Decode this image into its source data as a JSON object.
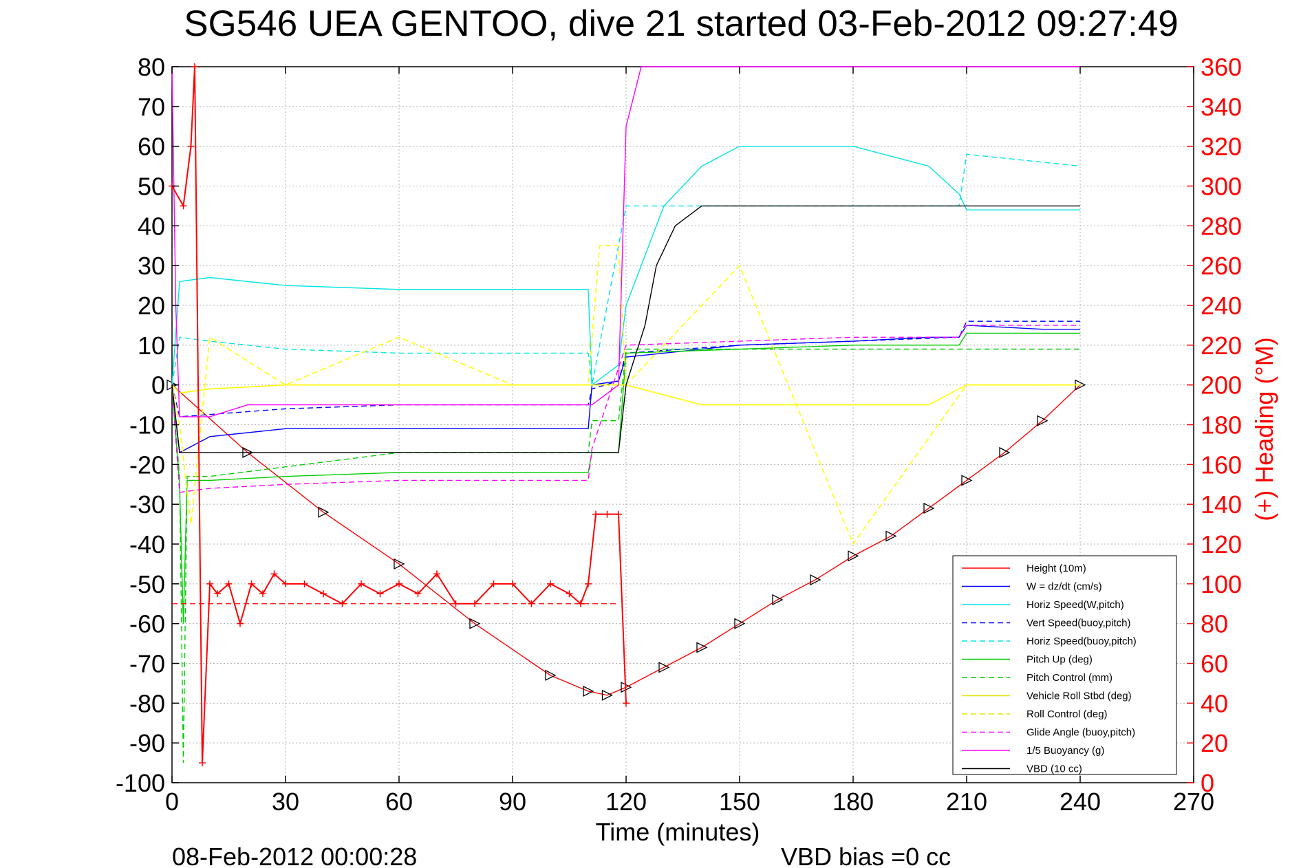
{
  "chart_data": {
    "type": "line",
    "title": "SG546 UEA GENTOO, dive 21 started 03-Feb-2012 09:27:49",
    "xlabel": "Time (minutes)",
    "ylabel_right": "(+) Heading (°M)",
    "footer_left": "08-Feb-2012 00:00:28",
    "footer_right": "VBD bias =0 cc",
    "xlim": [
      0,
      270
    ],
    "ylim": [
      -100,
      80
    ],
    "y2lim": [
      0,
      360
    ],
    "x_ticks": [
      "0",
      "30",
      "60",
      "90",
      "120",
      "150",
      "180",
      "210",
      "240",
      "270"
    ],
    "y_ticks": [
      "80",
      "70",
      "60",
      "50",
      "40",
      "30",
      "20",
      "10",
      "0",
      "-10",
      "-20",
      "-30",
      "-40",
      "-50",
      "-60",
      "-70",
      "-80",
      "-90",
      "-100"
    ],
    "y2_ticks": [
      "360",
      "340",
      "320",
      "300",
      "280",
      "260",
      "240",
      "220",
      "200",
      "180",
      "160",
      "140",
      "120",
      "100",
      "80",
      "60",
      "40",
      "20",
      "0"
    ],
    "grid": true,
    "legend_position": "bottom-right",
    "series": [
      {
        "name": "Height (10m)",
        "color": "#ff0000",
        "style": "solid",
        "marker": "triangle",
        "x": [
          0,
          20,
          40,
          60,
          80,
          100,
          110,
          115,
          120,
          130,
          140,
          150,
          160,
          170,
          180,
          190,
          200,
          210,
          220,
          230,
          240
        ],
        "y": [
          0,
          -17,
          -32,
          -45,
          -60,
          -73,
          -77,
          -78,
          -76,
          -71,
          -66,
          -60,
          -54,
          -49,
          -43,
          -38,
          -31,
          -24,
          -17,
          -9,
          0
        ]
      },
      {
        "name": "W = dz/dt (cm/s)",
        "color": "#0000ff",
        "style": "solid",
        "x": [
          0,
          2,
          10,
          30,
          60,
          90,
          110,
          111,
          118,
          120,
          130,
          150,
          180,
          200,
          208,
          210,
          230,
          240
        ],
        "y": [
          0,
          -17,
          -13,
          -11,
          -11,
          -11,
          -11,
          0,
          1,
          7,
          8,
          10,
          11,
          12,
          12,
          15,
          14,
          14
        ]
      },
      {
        "name": "Horiz Speed(W,pitch)",
        "color": "#00e5e5",
        "style": "solid",
        "x": [
          0,
          2,
          10,
          30,
          60,
          90,
          110,
          111,
          118,
          120,
          130,
          140,
          150,
          180,
          200,
          208,
          210,
          230,
          240
        ],
        "y": [
          0,
          26,
          27,
          25,
          24,
          24,
          24,
          0,
          5,
          20,
          45,
          55,
          60,
          60,
          55,
          48,
          44,
          44,
          44
        ]
      },
      {
        "name": "Vert Speed(buoy,pitch)",
        "color": "#0000ff",
        "style": "dashed",
        "x": [
          0,
          2,
          30,
          60,
          110,
          111,
          118,
          120,
          150,
          180,
          208,
          210,
          240
        ],
        "y": [
          0,
          -8,
          -6,
          -5,
          -5,
          -1,
          1,
          8,
          10,
          11,
          12,
          16,
          16
        ]
      },
      {
        "name": "Horiz Speed(buoy,pitch)",
        "color": "#00e5e5",
        "style": "dashed",
        "x": [
          0,
          2,
          10,
          30,
          60,
          90,
          110,
          111,
          120,
          150,
          180,
          208,
          210,
          240
        ],
        "y": [
          0,
          12,
          11,
          9,
          8,
          8,
          8,
          0,
          45,
          45,
          45,
          45,
          58,
          55
        ]
      },
      {
        "name": "Pitch Up (deg)",
        "color": "#00cc00",
        "style": "solid",
        "x": [
          0,
          2,
          3,
          4,
          10,
          30,
          60,
          90,
          110,
          111,
          118,
          120,
          150,
          180,
          208,
          210,
          240
        ],
        "y": [
          0,
          -25,
          -60,
          -24,
          -24,
          -23,
          -22,
          -22,
          -22,
          -17,
          -17,
          8,
          9,
          10,
          10,
          13,
          13
        ]
      },
      {
        "name": "Pitch Control (mm)",
        "color": "#00cc00",
        "style": "dashed",
        "x": [
          0,
          2,
          3,
          4,
          10,
          60,
          110,
          111,
          118,
          120,
          150,
          180,
          210,
          240
        ],
        "y": [
          0,
          -23,
          -95,
          -23,
          -23,
          -17,
          -17,
          -9,
          -9,
          9,
          9,
          9,
          9,
          9
        ]
      },
      {
        "name": "Vehicle Roll Stbd (deg)",
        "color": "#ffff00",
        "style": "solid",
        "x": [
          0,
          2,
          10,
          30,
          60,
          90,
          110,
          120,
          140,
          160,
          180,
          200,
          210,
          240
        ],
        "y": [
          0,
          -2,
          -1,
          0,
          0,
          0,
          0,
          0,
          -5,
          -5,
          -5,
          -5,
          0,
          0
        ]
      },
      {
        "name": "Roll Control (deg)",
        "color": "#ffff00",
        "style": "dashed",
        "x": [
          0,
          2,
          5,
          10,
          30,
          60,
          90,
          110,
          113,
          118,
          120,
          150,
          180,
          210,
          240
        ],
        "y": [
          0,
          -10,
          -35,
          12,
          0,
          12,
          0,
          0,
          35,
          35,
          0,
          30,
          -40,
          0,
          0
        ]
      },
      {
        "name": "Glide Angle (buoy,pitch)",
        "color": "#ff00ff",
        "style": "dashed",
        "x": [
          0,
          2,
          10,
          30,
          60,
          90,
          110,
          111,
          120,
          150,
          180,
          208,
          210,
          240
        ],
        "y": [
          0,
          -27,
          -26,
          -25,
          -24,
          -24,
          -24,
          -16,
          10,
          11,
          12,
          12,
          15,
          15
        ]
      },
      {
        "name": "1/5 Buoyancy (g)",
        "color": "#ff00ff",
        "style": "solid",
        "x": [
          0,
          1,
          2,
          10,
          20,
          60,
          110,
          111,
          118,
          120,
          124,
          240
        ],
        "y": [
          80,
          20,
          -8,
          -8,
          -5,
          -5,
          -5,
          -5,
          0,
          65,
          80,
          80
        ]
      },
      {
        "name": "VBD (10 cc)",
        "color": "#000000",
        "style": "solid",
        "x": [
          0,
          2,
          110,
          111,
          118,
          120,
          125,
          128,
          133,
          140,
          160,
          240
        ],
        "y": [
          0,
          -17,
          -17,
          -17,
          -17,
          0,
          15,
          30,
          40,
          45,
          45,
          45
        ]
      }
    ],
    "heading": {
      "name": "(+) Heading",
      "color": "#ff0000",
      "marker": "plus",
      "reference_line": 90,
      "x": [
        0,
        3,
        5,
        6,
        8,
        10,
        12,
        15,
        18,
        21,
        24,
        27,
        30,
        35,
        40,
        45,
        50,
        55,
        60,
        65,
        70,
        75,
        80,
        85,
        90,
        95,
        100,
        105,
        108,
        110,
        112,
        115,
        118,
        120
      ],
      "y": [
        300,
        290,
        320,
        360,
        10,
        100,
        95,
        100,
        80,
        100,
        95,
        105,
        100,
        100,
        95,
        90,
        100,
        95,
        100,
        95,
        105,
        90,
        90,
        100,
        100,
        90,
        100,
        95,
        90,
        100,
        135,
        135,
        135,
        40
      ]
    }
  }
}
